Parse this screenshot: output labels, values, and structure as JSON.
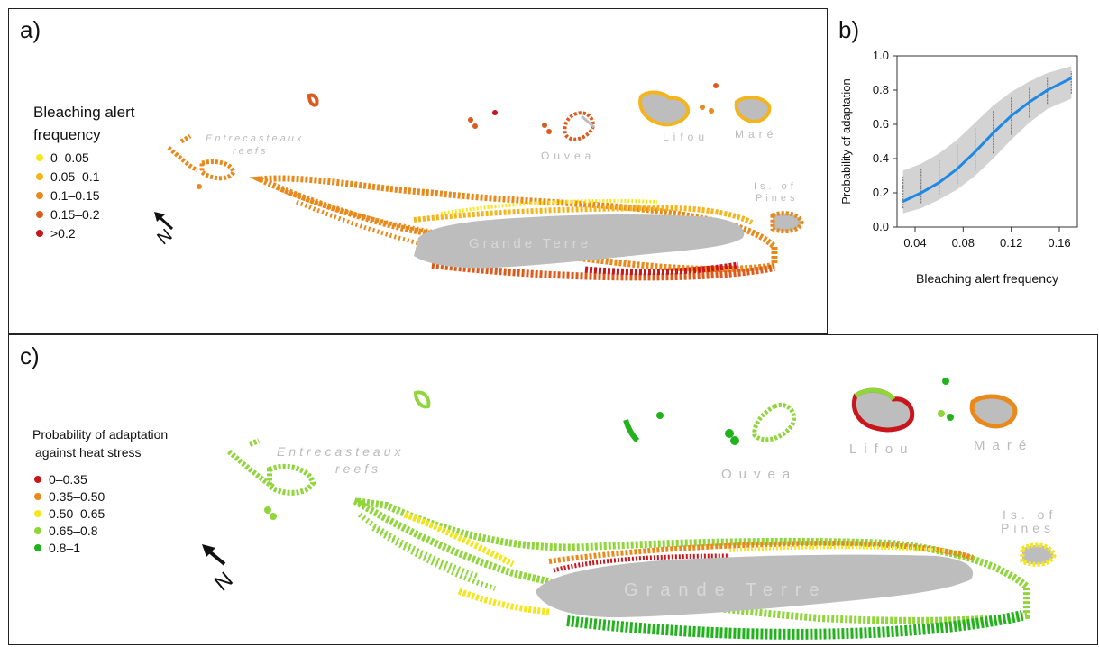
{
  "panel_a": {
    "label": "a)",
    "legend_title_line1": "Bleaching alert",
    "legend_title_line2": "frequency",
    "legend": [
      {
        "label": "0–0.05",
        "color": "#f5e61a"
      },
      {
        "label": "0.05–0.1",
        "color": "#f4b41c"
      },
      {
        "label": "0.1–0.15",
        "color": "#e8891a"
      },
      {
        "label": "0.15–0.2",
        "color": "#dc5a1c"
      },
      {
        "label": ">0.2",
        "color": "#c8161c"
      }
    ],
    "north": "N",
    "place_names": {
      "entrecasteaux_1": "Entrecasteaux",
      "entrecasteaux_2": "reefs",
      "ouvea": "Ouvea",
      "lifou": "Lifou",
      "mare": "Maré",
      "pines_1": "Is. of",
      "pines_2": "Pines",
      "grande_terre": "Grande Terre"
    }
  },
  "panel_b": {
    "label": "b)",
    "chart_data": {
      "type": "line",
      "xlabel": "Bleaching alert frequency",
      "ylabel": "Probability of adaptation",
      "xlim": [
        0.025,
        0.175
      ],
      "ylim": [
        0.0,
        1.0
      ],
      "x_ticks": [
        "0.04",
        "0.08",
        "0.12",
        "0.16"
      ],
      "y_ticks": [
        "0.0",
        "0.2",
        "0.4",
        "0.6",
        "0.8",
        "1.0"
      ],
      "series": [
        {
          "x": [
            0.03,
            0.045,
            0.06,
            0.075,
            0.09,
            0.105,
            0.12,
            0.135,
            0.15,
            0.17
          ],
          "y": [
            0.15,
            0.2,
            0.26,
            0.34,
            0.44,
            0.55,
            0.65,
            0.73,
            0.8,
            0.87
          ],
          "color": "#1e88e5"
        }
      ],
      "ci_lower": [
        0.08,
        0.11,
        0.16,
        0.22,
        0.3,
        0.4,
        0.51,
        0.61,
        0.69,
        0.75
      ],
      "ci_upper": [
        0.33,
        0.37,
        0.43,
        0.51,
        0.61,
        0.71,
        0.79,
        0.85,
        0.9,
        0.94
      ],
      "ci_color": "#d3d3d3",
      "grid": false
    }
  },
  "panel_c": {
    "label": "c)",
    "legend_title_line1": "Probability of adaptation",
    "legend_title_line2": "against heat stress",
    "legend": [
      {
        "label": "0–0.35",
        "color": "#c8161c"
      },
      {
        "label": "0.35–0.50",
        "color": "#e8891a"
      },
      {
        "label": "0.50–0.65",
        "color": "#f5e61a"
      },
      {
        "label": "0.65–0.8",
        "color": "#8ed63a"
      },
      {
        "label": "0.8–1",
        "color": "#22b21c"
      }
    ],
    "north": "N",
    "place_names": {
      "entrecasteaux_1": "Entrecasteaux",
      "entrecasteaux_2": "reefs",
      "ouvea": "Ouvea",
      "lifou": "Lifou",
      "mare": "Maré",
      "pines_1": "Is. of",
      "pines_2": "Pines",
      "grande_terre": "Grande Terre"
    }
  }
}
